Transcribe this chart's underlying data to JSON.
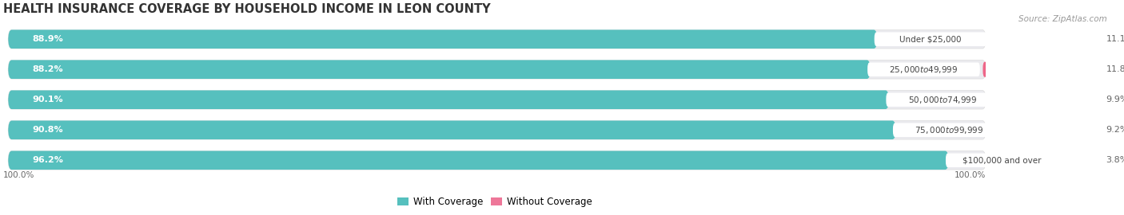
{
  "title": "HEALTH INSURANCE COVERAGE BY HOUSEHOLD INCOME IN LEON COUNTY",
  "source": "Source: ZipAtlas.com",
  "categories": [
    "Under $25,000",
    "$25,000 to $49,999",
    "$50,000 to $74,999",
    "$75,000 to $99,999",
    "$100,000 and over"
  ],
  "with_coverage": [
    88.9,
    88.2,
    90.1,
    90.8,
    96.2
  ],
  "without_coverage": [
    11.1,
    11.8,
    9.9,
    9.2,
    3.8
  ],
  "with_coverage_color": "#56C0BE",
  "without_coverage_colors": [
    "#EE6688",
    "#EE6688",
    "#EE6688",
    "#EE6688",
    "#F0A0BC"
  ],
  "bar_bg_color": "#EAEAEE",
  "title_fontsize": 10.5,
  "label_fontsize": 8.0,
  "source_fontsize": 7.5,
  "legend_fontsize": 8.5,
  "bar_height": 0.62,
  "total_width": 100,
  "bar_gap": 0.18
}
